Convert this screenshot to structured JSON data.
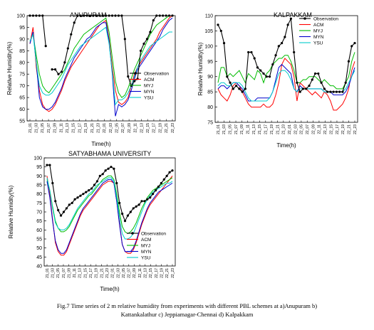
{
  "caption_line1": "Fig.7 Time series of 2 m relative humidity from experiments with different PBL schemes at a)Anupuram b)",
  "caption_line2": "Kattankalathur c) Jeppiamagar-Chennai d) Kalpakkam",
  "chart_data": [
    {
      "type": "line",
      "title": "ANUPURAM",
      "xlabel": "Time(h)",
      "ylabel": "Relative Humidity(%)",
      "ylim": [
        55,
        100
      ],
      "yticks": [
        55,
        60,
        65,
        70,
        75,
        80,
        85,
        90,
        95,
        100
      ],
      "xticks": [
        "21_01",
        "21_03",
        "21_05",
        "21_07",
        "21_09",
        "21_11",
        "21_13",
        "21_15",
        "21_17",
        "21_19",
        "21_21",
        "21_23",
        "22_01",
        "22_03",
        "22_05",
        "22_07",
        "22_09",
        "22_11",
        "22_13",
        "22_15",
        "22_17",
        "22_19",
        "22_21",
        "22_23"
      ],
      "legend_position": "center-right",
      "series": [
        {
          "name": "Observation",
          "color": "#000000",
          "marker": true,
          "values": [
            100,
            100,
            100,
            100,
            100,
            87,
            null,
            77,
            77,
            75,
            76,
            80,
            86,
            92,
            97,
            100,
            100,
            100,
            100,
            100,
            100,
            100,
            100,
            100,
            100,
            100,
            100,
            100,
            100,
            100,
            90,
            74,
            70,
            72,
            73,
            85,
            88,
            90,
            93,
            98,
            100,
            100,
            100,
            100,
            100,
            100
          ]
        },
        {
          "name": "ACM",
          "color": "#ff0000",
          "marker": false,
          "values": [
            88,
            95,
            78,
            68,
            62,
            60,
            59,
            60,
            62,
            65,
            68,
            72,
            75,
            78,
            80,
            82,
            84,
            86,
            88,
            90,
            92,
            94,
            96,
            97,
            98,
            90,
            78,
            68,
            63,
            62,
            63,
            65,
            70,
            75,
            78,
            80,
            82,
            84,
            86,
            88,
            90,
            93,
            95,
            97,
            99,
            100
          ]
        },
        {
          "name": "MYJ",
          "color": "#00bb00",
          "marker": false,
          "values": [
            89,
            92,
            83,
            75,
            70,
            68,
            67,
            69,
            71,
            73,
            75,
            77,
            80,
            83,
            86,
            88,
            90,
            92,
            93,
            94,
            95,
            96,
            97,
            98,
            99,
            93,
            82,
            72,
            67,
            65,
            66,
            69,
            73,
            77,
            80,
            83,
            86,
            89,
            92,
            94,
            96,
            97,
            98,
            99,
            100,
            100
          ]
        },
        {
          "name": "MYN",
          "color": "#0000cc",
          "marker": false,
          "values": [
            88,
            93,
            80,
            65,
            61,
            60,
            60,
            61,
            63,
            66,
            69,
            73,
            76,
            79,
            82,
            84,
            86,
            88,
            90,
            91,
            93,
            95,
            96,
            97,
            97,
            89,
            75,
            57,
            62,
            61,
            62,
            64,
            68,
            73,
            77,
            79,
            81,
            83,
            85,
            87,
            89,
            91,
            94,
            96,
            98,
            99
          ]
        },
        {
          "name": "YSU",
          "color": "#00cccc",
          "marker": false,
          "values": [
            89,
            92,
            80,
            70,
            67,
            66,
            66,
            67,
            69,
            71,
            73,
            76,
            79,
            81,
            83,
            85,
            87,
            88,
            89,
            90,
            91,
            92,
            93,
            94,
            95,
            88,
            76,
            62,
            64,
            64,
            65,
            67,
            70,
            74,
            78,
            81,
            83,
            85,
            87,
            88,
            89,
            90,
            91,
            92,
            93,
            93
          ]
        }
      ]
    },
    {
      "type": "line",
      "title": "KALPAKKAM",
      "xlabel": "Time(h)",
      "ylabel": "Relative Humidity(%)",
      "ylim": [
        75,
        110
      ],
      "yticks": [
        75,
        80,
        85,
        90,
        95,
        100,
        105,
        110
      ],
      "xticks": [
        "21_01",
        "21_03",
        "21_05",
        "21_07",
        "21_09",
        "21_11",
        "21_13",
        "21_15",
        "21_17",
        "21_19",
        "21_21",
        "21_23",
        "22_01",
        "22_03",
        "22_05",
        "22_07",
        "22_09",
        "22_11",
        "22_13",
        "22_15",
        "22_17",
        "22_19",
        "22_21",
        "22_23"
      ],
      "legend_position": "top-right",
      "series": [
        {
          "name": "Observation",
          "color": "#000000",
          "marker": true,
          "values": [
            107,
            105,
            101,
            90,
            88,
            86,
            87,
            86,
            85,
            86,
            98,
            98,
            96,
            93,
            92,
            91,
            90,
            90,
            94,
            97,
            100,
            101,
            103,
            107,
            109,
            98,
            88,
            85,
            86,
            86,
            87,
            89,
            91,
            91,
            88,
            86,
            85,
            85,
            85,
            85,
            85,
            85,
            88,
            95,
            100,
            101
          ]
        },
        {
          "name": "ACM",
          "color": "#ff0000",
          "marker": false,
          "values": [
            86,
            84,
            83,
            82,
            84,
            87,
            88,
            87,
            85,
            83,
            81,
            80,
            80,
            80,
            80,
            81,
            80,
            80,
            81,
            84,
            88,
            94,
            96,
            95,
            94,
            90,
            82,
            88,
            87,
            86,
            85,
            84,
            85,
            84,
            83,
            85,
            84,
            82,
            79,
            79,
            80,
            81,
            83,
            86,
            92,
            95
          ]
        },
        {
          "name": "MYJ",
          "color": "#00bb00",
          "marker": false,
          "values": [
            88,
            93,
            93,
            90,
            91,
            90,
            91,
            92,
            90,
            88,
            91,
            90,
            89,
            92,
            91,
            88,
            91,
            92,
            94,
            95,
            96,
            96,
            97,
            97,
            95,
            92,
            88,
            88,
            89,
            89,
            90,
            90,
            90,
            89,
            88,
            89,
            88,
            87,
            87,
            86,
            86,
            86,
            88,
            90,
            95,
            98
          ]
        },
        {
          "name": "MYN",
          "color": "#0000cc",
          "marker": false,
          "values": [
            86,
            87,
            87,
            86,
            87,
            88,
            88,
            87,
            86,
            84,
            82,
            82,
            82,
            83,
            83,
            83,
            83,
            83,
            85,
            89,
            93,
            94,
            93,
            92,
            91,
            86,
            85,
            87,
            86,
            86,
            86,
            86,
            86,
            86,
            86,
            85,
            85,
            85,
            84,
            84,
            84,
            84,
            85,
            87,
            90,
            93
          ]
        },
        {
          "name": "YSU",
          "color": "#00cccc",
          "marker": false,
          "values": [
            87,
            88,
            88,
            87,
            87,
            88,
            88,
            88,
            87,
            85,
            83,
            82,
            82,
            82,
            82,
            82,
            82,
            83,
            85,
            88,
            91,
            92,
            92,
            91,
            89,
            86,
            85,
            86,
            86,
            86,
            86,
            86,
            86,
            86,
            86,
            85,
            85,
            85,
            85,
            85,
            85,
            85,
            86,
            88,
            90,
            92
          ]
        }
      ]
    },
    {
      "type": "line",
      "title": "SATYABHAMA UNIVERSITY",
      "xlabel": "Time(h)",
      "ylabel": "Relative Humidity(%)",
      "ylim": [
        40,
        100
      ],
      "yticks": [
        40,
        45,
        50,
        55,
        60,
        65,
        70,
        75,
        80,
        85,
        90,
        95,
        100
      ],
      "xticks": [
        "21_01",
        "21_03",
        "21_05",
        "21_07",
        "21_09",
        "21_11",
        "21_13",
        "21_15",
        "21_17",
        "21_19",
        "21_21",
        "21_23",
        "22_01",
        "22_03",
        "22_05",
        "22_07",
        "22_09",
        "22_11",
        "22_13",
        "22_15",
        "22_17",
        "22_19",
        "22_21",
        "22_23"
      ],
      "legend_position": "bottom-right",
      "series": [
        {
          "name": "Observation",
          "color": "#000000",
          "marker": true,
          "values": [
            96,
            96,
            86,
            76,
            71,
            68,
            70,
            72,
            74,
            75,
            77,
            78,
            79,
            80,
            81,
            82,
            83,
            85,
            87,
            90,
            91,
            93,
            94,
            95,
            94,
            86,
            75,
            69,
            65,
            68,
            70,
            72,
            73,
            74,
            76,
            76,
            77,
            78,
            80,
            82,
            84,
            86,
            88,
            90,
            92,
            93
          ]
        },
        {
          "name": "ACM",
          "color": "#ff0000",
          "marker": false,
          "values": [
            90,
            80,
            66,
            53,
            48,
            46,
            46,
            48,
            52,
            56,
            60,
            64,
            68,
            71,
            73,
            75,
            77,
            79,
            81,
            83,
            85,
            86,
            87,
            87,
            86,
            76,
            64,
            52,
            48,
            47,
            47,
            49,
            53,
            58,
            63,
            67,
            71,
            74,
            76,
            78,
            80,
            82,
            84,
            86,
            88,
            90
          ]
        },
        {
          "name": "MYJ",
          "color": "#00bb00",
          "marker": false,
          "values": [
            88,
            82,
            73,
            65,
            61,
            59,
            59,
            60,
            62,
            65,
            68,
            71,
            73,
            75,
            77,
            79,
            80,
            82,
            84,
            86,
            88,
            89,
            90,
            90,
            88,
            80,
            70,
            62,
            59,
            58,
            59,
            61,
            64,
            68,
            72,
            75,
            78,
            80,
            82,
            83,
            84,
            85,
            86,
            87,
            88,
            89
          ]
        },
        {
          "name": "MYN",
          "color": "#0000cc",
          "marker": false,
          "values": [
            87,
            78,
            65,
            54,
            49,
            47,
            47,
            49,
            53,
            57,
            61,
            65,
            69,
            72,
            74,
            76,
            78,
            80,
            82,
            84,
            86,
            87,
            88,
            88,
            86,
            76,
            63,
            52,
            48,
            48,
            48,
            50,
            54,
            59,
            64,
            68,
            72,
            75,
            77,
            79,
            81,
            82,
            83,
            84,
            85,
            86
          ]
        },
        {
          "name": "YSU",
          "color": "#00cccc",
          "marker": false,
          "values": [
            89,
            82,
            72,
            64,
            61,
            60,
            60,
            61,
            63,
            66,
            69,
            72,
            74,
            76,
            78,
            80,
            81,
            83,
            85,
            86,
            87,
            88,
            89,
            89,
            87,
            78,
            67,
            58,
            55,
            55,
            56,
            58,
            62,
            66,
            70,
            74,
            77,
            79,
            81,
            82,
            83,
            84,
            85,
            86,
            86,
            87
          ]
        }
      ]
    }
  ]
}
